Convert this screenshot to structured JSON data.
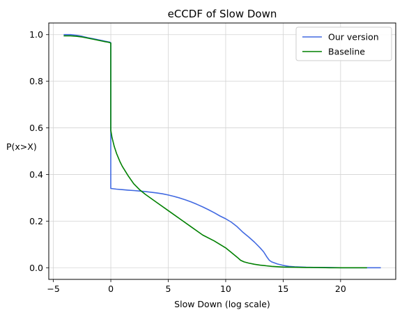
{
  "chart_data": {
    "type": "line",
    "title": "eCCDF of Slow Down",
    "xlabel": "Slow Down (log scale)",
    "ylabel": "P(x>X)",
    "xlim": [
      -5.4,
      24.8
    ],
    "ylim": [
      -0.05,
      1.05
    ],
    "xticks": [
      -5,
      0,
      5,
      10,
      15,
      20
    ],
    "xtick_labels": [
      "−5",
      "0",
      "5",
      "10",
      "15",
      "20"
    ],
    "yticks": [
      0.0,
      0.2,
      0.4,
      0.6,
      0.8,
      1.0
    ],
    "ytick_labels": [
      "0.0",
      "0.2",
      "0.4",
      "0.6",
      "0.8",
      "1.0"
    ],
    "grid": true,
    "legend_position": "top-right",
    "series": [
      {
        "name": "Our version",
        "color": "#4169e1",
        "x": [
          -4.1,
          -3.5,
          -3.0,
          -2.5,
          -2.0,
          -1.5,
          -1.0,
          -0.7,
          -0.5,
          -0.3,
          -0.1,
          0.0,
          0.0,
          0.5,
          1.0,
          1.5,
          2.0,
          2.5,
          3.0,
          3.5,
          4.0,
          4.5,
          5.0,
          5.5,
          6.0,
          6.5,
          7.0,
          7.5,
          8.0,
          8.5,
          9.0,
          9.5,
          10.0,
          10.5,
          11.0,
          11.5,
          12.0,
          12.5,
          13.0,
          13.3,
          13.6,
          13.8,
          14.0,
          14.5,
          15.0,
          15.5,
          16.0,
          17.0,
          18.0,
          19.0,
          20.0,
          21.0,
          22.0,
          23.0,
          23.5
        ],
        "y": [
          1.0,
          1.0,
          0.997,
          0.993,
          0.987,
          0.982,
          0.977,
          0.974,
          0.972,
          0.97,
          0.968,
          0.965,
          0.34,
          0.337,
          0.335,
          0.333,
          0.331,
          0.329,
          0.327,
          0.324,
          0.321,
          0.317,
          0.312,
          0.306,
          0.299,
          0.291,
          0.282,
          0.272,
          0.261,
          0.249,
          0.236,
          0.222,
          0.21,
          0.195,
          0.176,
          0.152,
          0.132,
          0.11,
          0.085,
          0.068,
          0.045,
          0.032,
          0.025,
          0.016,
          0.01,
          0.006,
          0.004,
          0.002,
          0.001,
          0.001,
          0.0,
          0.0,
          0.0,
          0.0,
          0.0
        ]
      },
      {
        "name": "Baseline",
        "color": "#008000",
        "x": [
          -4.1,
          -3.5,
          -3.0,
          -2.5,
          -2.0,
          -1.5,
          -1.0,
          -0.7,
          -0.5,
          -0.3,
          -0.1,
          0.0,
          0.0,
          0.1,
          0.3,
          0.5,
          0.8,
          1.0,
          1.5,
          2.0,
          2.5,
          3.0,
          4.0,
          5.0,
          6.0,
          7.0,
          8.0,
          9.0,
          10.0,
          10.5,
          11.0,
          11.3,
          11.6,
          12.0,
          12.5,
          13.0,
          14.0,
          15.0,
          16.0,
          17.0,
          18.0,
          19.0,
          20.0,
          21.0,
          22.3
        ],
        "y": [
          0.995,
          0.995,
          0.993,
          0.99,
          0.985,
          0.98,
          0.975,
          0.972,
          0.97,
          0.968,
          0.966,
          0.964,
          0.59,
          0.56,
          0.52,
          0.49,
          0.455,
          0.435,
          0.395,
          0.36,
          0.335,
          0.315,
          0.28,
          0.245,
          0.21,
          0.175,
          0.14,
          0.115,
          0.085,
          0.065,
          0.045,
          0.032,
          0.025,
          0.02,
          0.015,
          0.011,
          0.006,
          0.003,
          0.002,
          0.001,
          0.001,
          0.0,
          0.0,
          0.0,
          0.0
        ]
      }
    ]
  }
}
